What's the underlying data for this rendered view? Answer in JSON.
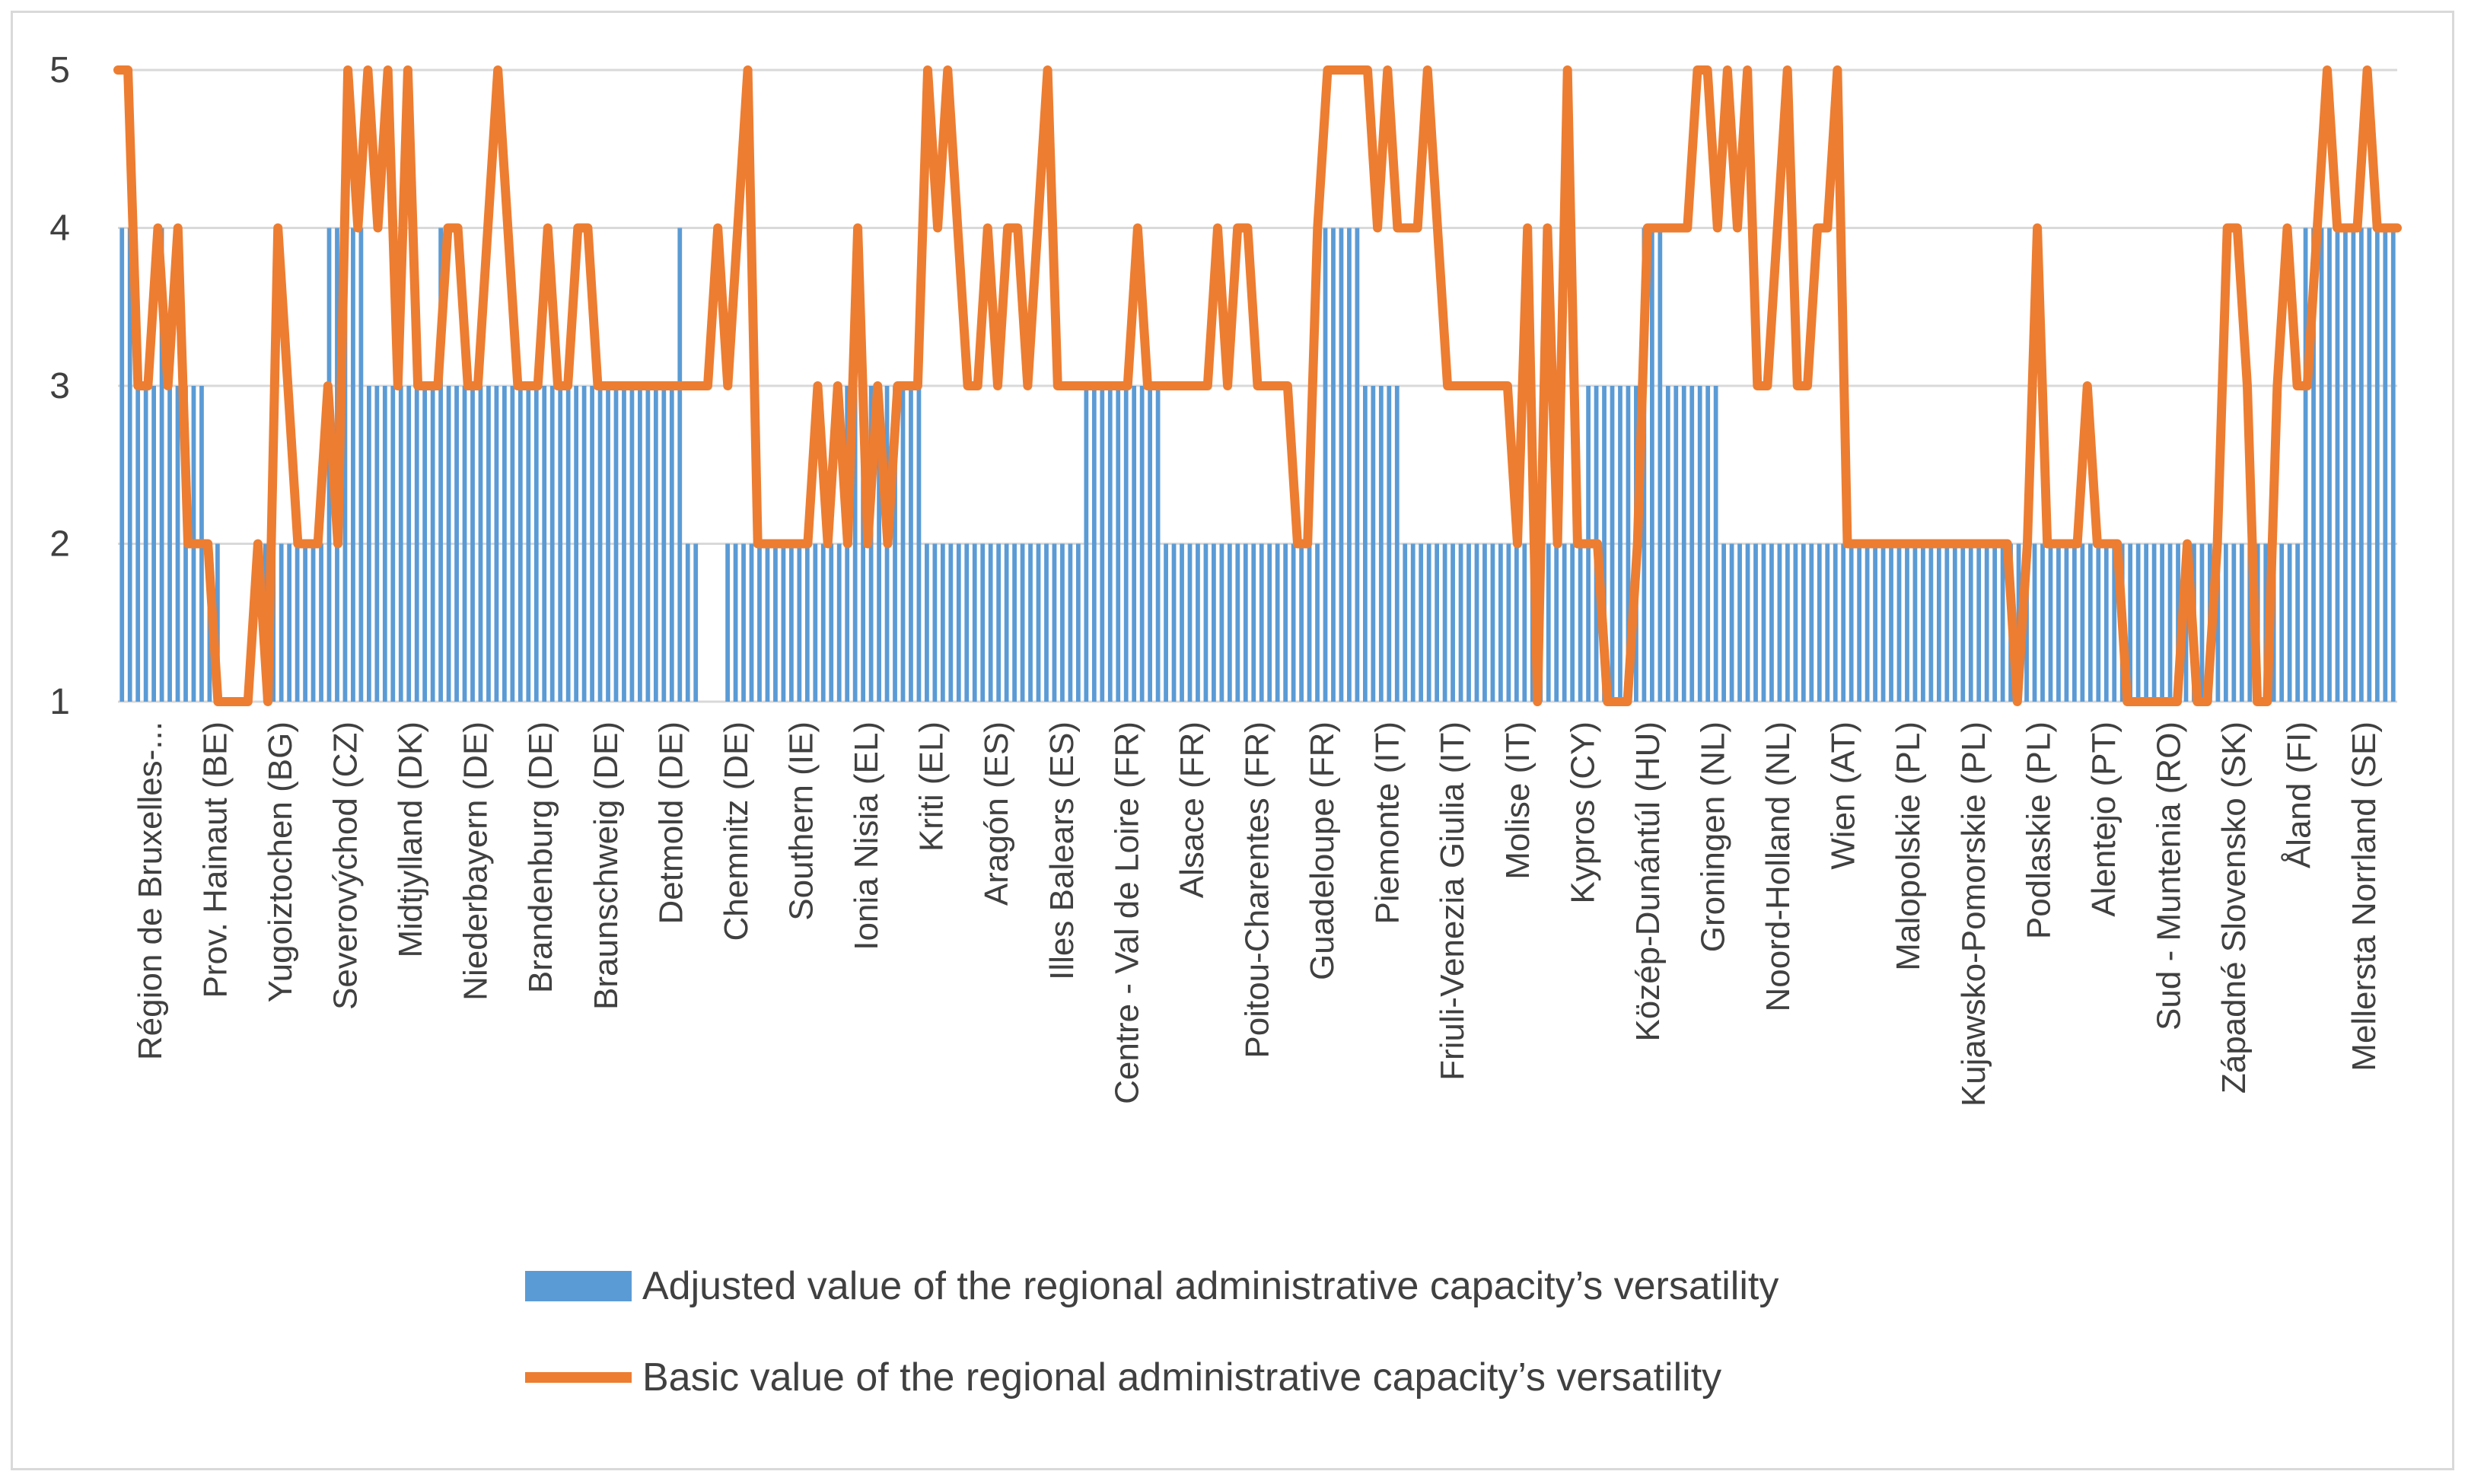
{
  "colors": {
    "bars": "#5b9bd5",
    "line": "#ed7d31",
    "grid": "#d9d9d9",
    "text": "#404040"
  },
  "legend": {
    "bar_label": "Adjusted value of the regional administrative capacity’s versatility",
    "line_label": "Basic value of the regional administrative capacity’s versatility"
  },
  "chart_data": {
    "type": "bar+line",
    "title": "",
    "xlabel": "",
    "ylabel": "",
    "ylim": [
      1,
      5
    ],
    "yticks": [
      "1",
      "2",
      "3",
      "4",
      "5"
    ],
    "grid": true,
    "legend_position": "bottom",
    "tick_labels": [
      "Région de Bruxelles-...",
      "Prov. Hainaut (BE)",
      "Yugoiztochen (BG)",
      "Severovýchod (CZ)",
      "Midtjylland (DK)",
      "Niederbayern (DE)",
      "Brandenburg (DE)",
      "Braunschweig (DE)",
      "Detmold (DE)",
      "Chemnitz (DE)",
      "Southern (IE)",
      "Ionia Nisia (EL)",
      "Kriti (EL)",
      "Aragón (ES)",
      "Illes Balears (ES)",
      "Centre - Val de Loire (FR)",
      "Alsace (FR)",
      "Poitou-Charentes (FR)",
      "Guadeloupe (FR)",
      "Piemonte (IT)",
      "Friuli-Venezia Giulia (IT)",
      "Molise (IT)",
      "Kypros (CY)",
      "Közép-Dunántúl (HU)",
      "Groningen (NL)",
      "Noord-Holland (NL)",
      "Wien (AT)",
      "Malopolskie (PL)",
      "Kujawsko-Pomorskie (PL)",
      "Podlaskie (PL)",
      "Alentejo (PT)",
      "Sud - Muntenia (RO)",
      "Západné Slovensko (SK)",
      "Åland (FI)",
      "Mellersta Norrland (SE)"
    ],
    "series": [
      {
        "name": "Adjusted value of the regional administrative capacity’s versatility",
        "type": "bar",
        "values": [
          4,
          4,
          3,
          3,
          3,
          4,
          3,
          3,
          3,
          3,
          3,
          2,
          2,
          1,
          1,
          1,
          1,
          1,
          2,
          2,
          2,
          2,
          2,
          2,
          2,
          2,
          4,
          4,
          4,
          4,
          4,
          3,
          3,
          3,
          3,
          3,
          3,
          3,
          3,
          3,
          4,
          3,
          3,
          3,
          3,
          3,
          3,
          3,
          3,
          3,
          3,
          3,
          3,
          3,
          3,
          3,
          3,
          3,
          3,
          3,
          3,
          3,
          3,
          3,
          3,
          3,
          3,
          3,
          3,
          3,
          4,
          2,
          2,
          1,
          1,
          1,
          2,
          2,
          2,
          2,
          2,
          2,
          2,
          2,
          2,
          2,
          2,
          2,
          2,
          2,
          2,
          3,
          3,
          3,
          3,
          3,
          3,
          3,
          3,
          3,
          3,
          2,
          2,
          2,
          2,
          2,
          2,
          2,
          2,
          2,
          2,
          2,
          2,
          2,
          2,
          2,
          2,
          2,
          2,
          2,
          2,
          3,
          3,
          3,
          3,
          3,
          3,
          3,
          3,
          3,
          3,
          2,
          2,
          2,
          2,
          2,
          2,
          2,
          2,
          2,
          2,
          2,
          2,
          2,
          2,
          2,
          2,
          2,
          2,
          2,
          2,
          4,
          4,
          4,
          4,
          4,
          3,
          3,
          3,
          3,
          3,
          2,
          2,
          2,
          2,
          2,
          2,
          2,
          2,
          2,
          2,
          2,
          2,
          2,
          2,
          2,
          2,
          2,
          2,
          2,
          2,
          2,
          2,
          2,
          3,
          3,
          3,
          3,
          3,
          3,
          3,
          4,
          4,
          4,
          3,
          3,
          3,
          3,
          3,
          3,
          3,
          2,
          2,
          2,
          2,
          2,
          2,
          2,
          2,
          2,
          2,
          2,
          2,
          2,
          2,
          2,
          2,
          2,
          2,
          2,
          2,
          2,
          2,
          2,
          2,
          2,
          2,
          2,
          2,
          2,
          2,
          2,
          2,
          2,
          2,
          2,
          2,
          2,
          2,
          2,
          2,
          2,
          2,
          2,
          2,
          2,
          2,
          2,
          2,
          2,
          2,
          2,
          2,
          2,
          2,
          2,
          2,
          2,
          2,
          2,
          2,
          2,
          2,
          2,
          2,
          2,
          2,
          2,
          2,
          2,
          2,
          2,
          2,
          2,
          4,
          4,
          4,
          4,
          4,
          4,
          4,
          4,
          4,
          4,
          4,
          4
        ]
      },
      {
        "name": "Basic value of the regional administrative capacity’s versatility",
        "type": "line",
        "values": [
          5,
          5,
          3,
          3,
          4,
          3,
          4,
          2,
          2,
          2,
          1,
          1,
          1,
          1,
          2,
          1,
          4,
          3,
          2,
          2,
          2,
          3,
          2,
          5,
          4,
          5,
          4,
          5,
          3,
          5,
          3,
          3,
          3,
          4,
          4,
          3,
          3,
          4,
          5,
          4,
          3,
          3,
          3,
          4,
          3,
          3,
          4,
          4,
          3,
          3,
          3,
          3,
          3,
          3,
          3,
          3,
          3,
          3,
          3,
          3,
          4,
          3,
          4,
          5,
          2,
          2,
          2,
          2,
          2,
          2,
          3,
          2,
          3,
          2,
          4,
          2,
          3,
          2,
          3,
          3,
          3,
          5,
          4,
          5,
          4,
          3,
          3,
          4,
          3,
          4,
          4,
          3,
          4,
          5,
          3,
          3,
          3,
          3,
          3,
          3,
          3,
          3,
          4,
          3,
          3,
          3,
          3,
          3,
          3,
          3,
          4,
          3,
          4,
          4,
          3,
          3,
          3,
          3,
          2,
          2,
          4,
          5,
          5,
          5,
          5,
          5,
          4,
          5,
          4,
          4,
          4,
          5,
          4,
          3,
          3,
          3,
          3,
          3,
          3,
          3,
          2,
          4,
          1,
          4,
          2,
          5,
          2,
          2,
          2,
          1,
          1,
          1,
          2,
          4,
          4,
          4,
          4,
          4,
          5,
          5,
          4,
          5,
          4,
          5,
          3,
          3,
          4,
          5,
          3,
          3,
          4,
          4,
          5,
          2,
          2,
          2,
          2,
          2,
          2,
          2,
          2,
          2,
          2,
          2,
          2,
          2,
          2,
          2,
          2,
          2,
          1,
          2,
          4,
          2,
          2,
          2,
          2,
          3,
          2,
          2,
          2,
          1,
          1,
          1,
          1,
          1,
          1,
          2,
          1,
          1,
          2,
          4,
          4,
          3,
          1,
          1,
          3,
          4,
          3,
          3,
          4,
          5,
          4,
          4,
          4,
          5,
          4,
          4,
          4
        ]
      }
    ]
  }
}
